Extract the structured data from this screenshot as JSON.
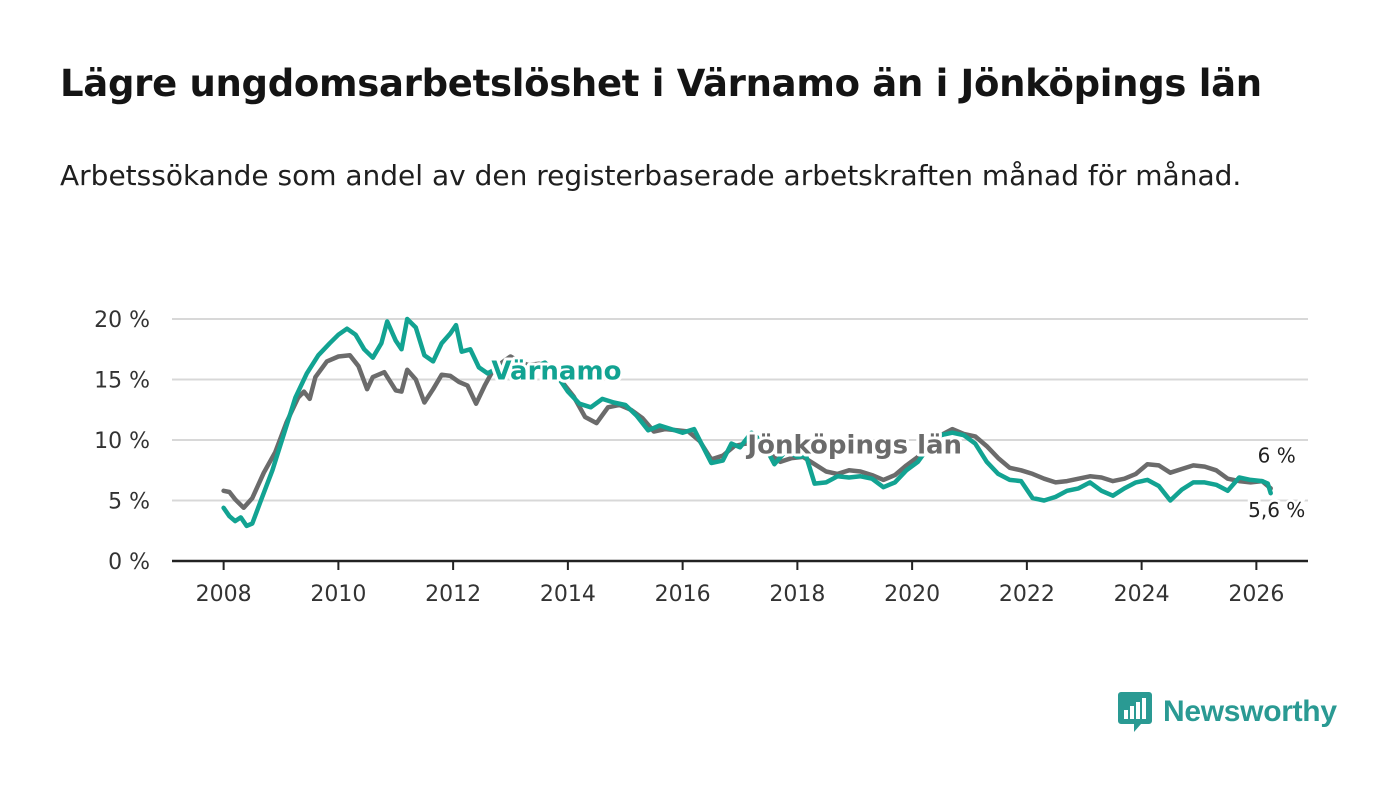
{
  "header": {
    "title": "Lägre ungdomsarbetslöshet i Värnamo än i Jönköpings län",
    "subtitle": "Arbetssökande som andel av den registerbaserade arbetskraften månad för månad."
  },
  "brand": {
    "name": "Newsworthy",
    "icon": "newsworthy-logo-icon",
    "color": "#2a9a93"
  },
  "chart_data": {
    "type": "line",
    "title": "Lägre ungdomsarbetslöshet i Värnamo än i Jönköpings län",
    "xlabel": "",
    "ylabel": "",
    "xlim": [
      2007.1,
      2026.9
    ],
    "ylim": [
      0,
      20
    ],
    "x_ticks": [
      2008,
      2010,
      2012,
      2014,
      2016,
      2018,
      2020,
      2022,
      2024,
      2026
    ],
    "x_tick_labels": [
      "2008",
      "2010",
      "2012",
      "2014",
      "2016",
      "2018",
      "2020",
      "2022",
      "2024",
      "2026"
    ],
    "y_ticks": [
      0,
      5,
      10,
      15,
      20
    ],
    "y_tick_labels": [
      "0 %",
      "5 %",
      "10 %",
      "15 %",
      "20 %"
    ],
    "grid": true,
    "series": [
      {
        "name": "Jönköpings län",
        "color": "#6b6b6b",
        "end_label": "6 %",
        "points": [
          [
            2008.0,
            5.8
          ],
          [
            2008.1,
            5.7
          ],
          [
            2008.2,
            5.1
          ],
          [
            2008.35,
            4.4
          ],
          [
            2008.5,
            5.2
          ],
          [
            2008.7,
            7.3
          ],
          [
            2008.9,
            9.0
          ],
          [
            2009.1,
            11.5
          ],
          [
            2009.3,
            13.5
          ],
          [
            2009.4,
            14.0
          ],
          [
            2009.5,
            13.4
          ],
          [
            2009.6,
            15.2
          ],
          [
            2009.8,
            16.5
          ],
          [
            2010.0,
            16.9
          ],
          [
            2010.2,
            17.0
          ],
          [
            2010.35,
            16.1
          ],
          [
            2010.5,
            14.2
          ],
          [
            2010.6,
            15.2
          ],
          [
            2010.8,
            15.6
          ],
          [
            2011.0,
            14.1
          ],
          [
            2011.1,
            14.0
          ],
          [
            2011.2,
            15.8
          ],
          [
            2011.35,
            15.0
          ],
          [
            2011.5,
            13.1
          ],
          [
            2011.65,
            14.2
          ],
          [
            2011.8,
            15.4
          ],
          [
            2011.95,
            15.3
          ],
          [
            2012.1,
            14.8
          ],
          [
            2012.25,
            14.5
          ],
          [
            2012.4,
            13.0
          ],
          [
            2012.55,
            14.5
          ],
          [
            2012.7,
            15.8
          ],
          [
            2012.85,
            16.4
          ],
          [
            2013.0,
            16.9
          ],
          [
            2013.15,
            16.5
          ],
          [
            2013.3,
            16.2
          ],
          [
            2013.5,
            16.3
          ],
          [
            2013.7,
            16.1
          ],
          [
            2013.9,
            14.8
          ],
          [
            2014.1,
            13.6
          ],
          [
            2014.3,
            11.9
          ],
          [
            2014.5,
            11.4
          ],
          [
            2014.7,
            12.7
          ],
          [
            2014.9,
            12.9
          ],
          [
            2015.1,
            12.5
          ],
          [
            2015.3,
            11.8
          ],
          [
            2015.5,
            10.7
          ],
          [
            2015.7,
            10.9
          ],
          [
            2015.9,
            10.8
          ],
          [
            2016.1,
            10.7
          ],
          [
            2016.3,
            9.9
          ],
          [
            2016.5,
            8.4
          ],
          [
            2016.7,
            8.7
          ],
          [
            2016.9,
            9.5
          ],
          [
            2017.1,
            9.7
          ],
          [
            2017.3,
            9.6
          ],
          [
            2017.5,
            9.0
          ],
          [
            2017.7,
            8.2
          ],
          [
            2017.9,
            8.5
          ],
          [
            2018.1,
            8.6
          ],
          [
            2018.3,
            8.0
          ],
          [
            2018.5,
            7.4
          ],
          [
            2018.7,
            7.2
          ],
          [
            2018.9,
            7.5
          ],
          [
            2019.1,
            7.4
          ],
          [
            2019.3,
            7.1
          ],
          [
            2019.5,
            6.7
          ],
          [
            2019.7,
            7.1
          ],
          [
            2019.9,
            7.9
          ],
          [
            2020.1,
            8.6
          ],
          [
            2020.3,
            9.8
          ],
          [
            2020.5,
            10.4
          ],
          [
            2020.7,
            10.9
          ],
          [
            2020.9,
            10.5
          ],
          [
            2021.1,
            10.3
          ],
          [
            2021.3,
            9.5
          ],
          [
            2021.5,
            8.5
          ],
          [
            2021.7,
            7.7
          ],
          [
            2021.9,
            7.5
          ],
          [
            2022.1,
            7.2
          ],
          [
            2022.3,
            6.8
          ],
          [
            2022.5,
            6.5
          ],
          [
            2022.7,
            6.6
          ],
          [
            2022.9,
            6.8
          ],
          [
            2023.1,
            7.0
          ],
          [
            2023.3,
            6.9
          ],
          [
            2023.5,
            6.6
          ],
          [
            2023.7,
            6.8
          ],
          [
            2023.9,
            7.2
          ],
          [
            2024.1,
            8.0
          ],
          [
            2024.3,
            7.9
          ],
          [
            2024.5,
            7.3
          ],
          [
            2024.7,
            7.6
          ],
          [
            2024.9,
            7.9
          ],
          [
            2025.1,
            7.8
          ],
          [
            2025.3,
            7.5
          ],
          [
            2025.5,
            6.8
          ],
          [
            2025.7,
            6.6
          ],
          [
            2025.9,
            6.5
          ],
          [
            2026.1,
            6.6
          ],
          [
            2026.25,
            6.0
          ]
        ]
      },
      {
        "name": "Värnamo",
        "color": "#12a392",
        "end_label": "5,6 %",
        "points": [
          [
            2008.0,
            4.4
          ],
          [
            2008.1,
            3.7
          ],
          [
            2008.2,
            3.3
          ],
          [
            2008.3,
            3.6
          ],
          [
            2008.4,
            2.9
          ],
          [
            2008.5,
            3.1
          ],
          [
            2008.65,
            5.0
          ],
          [
            2008.85,
            7.5
          ],
          [
            2009.05,
            10.5
          ],
          [
            2009.25,
            13.5
          ],
          [
            2009.45,
            15.5
          ],
          [
            2009.65,
            17.0
          ],
          [
            2009.85,
            18.0
          ],
          [
            2010.0,
            18.7
          ],
          [
            2010.15,
            19.2
          ],
          [
            2010.3,
            18.7
          ],
          [
            2010.45,
            17.5
          ],
          [
            2010.6,
            16.8
          ],
          [
            2010.75,
            18.0
          ],
          [
            2010.85,
            19.8
          ],
          [
            2011.0,
            18.2
          ],
          [
            2011.1,
            17.5
          ],
          [
            2011.2,
            20.0
          ],
          [
            2011.35,
            19.3
          ],
          [
            2011.5,
            17.0
          ],
          [
            2011.65,
            16.5
          ],
          [
            2011.8,
            18.0
          ],
          [
            2011.95,
            18.8
          ],
          [
            2012.05,
            19.5
          ],
          [
            2012.15,
            17.3
          ],
          [
            2012.3,
            17.5
          ],
          [
            2012.45,
            16.0
          ],
          [
            2012.6,
            15.5
          ],
          [
            2012.8,
            16.0
          ],
          [
            2013.0,
            16.4
          ],
          [
            2013.2,
            16.1
          ],
          [
            2013.4,
            16.0
          ],
          [
            2013.6,
            16.4
          ],
          [
            2013.8,
            15.4
          ],
          [
            2014.0,
            14.0
          ],
          [
            2014.2,
            13.0
          ],
          [
            2014.4,
            12.7
          ],
          [
            2014.6,
            13.4
          ],
          [
            2014.8,
            13.1
          ],
          [
            2015.0,
            12.9
          ],
          [
            2015.2,
            12.0
          ],
          [
            2015.4,
            10.8
          ],
          [
            2015.6,
            11.2
          ],
          [
            2015.8,
            10.9
          ],
          [
            2016.0,
            10.6
          ],
          [
            2016.2,
            10.9
          ],
          [
            2016.35,
            9.5
          ],
          [
            2016.5,
            8.1
          ],
          [
            2016.7,
            8.3
          ],
          [
            2016.85,
            9.7
          ],
          [
            2017.0,
            9.4
          ],
          [
            2017.2,
            10.6
          ],
          [
            2017.4,
            9.8
          ],
          [
            2017.6,
            8.0
          ],
          [
            2017.8,
            9.1
          ],
          [
            2018.0,
            8.6
          ],
          [
            2018.15,
            8.7
          ],
          [
            2018.3,
            6.4
          ],
          [
            2018.5,
            6.5
          ],
          [
            2018.7,
            7.0
          ],
          [
            2018.9,
            6.9
          ],
          [
            2019.1,
            7.0
          ],
          [
            2019.3,
            6.8
          ],
          [
            2019.5,
            6.1
          ],
          [
            2019.7,
            6.5
          ],
          [
            2019.9,
            7.5
          ],
          [
            2020.1,
            8.2
          ],
          [
            2020.3,
            9.5
          ],
          [
            2020.5,
            10.4
          ],
          [
            2020.7,
            10.6
          ],
          [
            2020.9,
            10.4
          ],
          [
            2021.1,
            9.7
          ],
          [
            2021.3,
            8.2
          ],
          [
            2021.5,
            7.2
          ],
          [
            2021.7,
            6.7
          ],
          [
            2021.9,
            6.6
          ],
          [
            2022.1,
            5.2
          ],
          [
            2022.3,
            5.0
          ],
          [
            2022.5,
            5.3
          ],
          [
            2022.7,
            5.8
          ],
          [
            2022.9,
            6.0
          ],
          [
            2023.1,
            6.5
          ],
          [
            2023.3,
            5.8
          ],
          [
            2023.5,
            5.4
          ],
          [
            2023.7,
            6.0
          ],
          [
            2023.9,
            6.5
          ],
          [
            2024.1,
            6.7
          ],
          [
            2024.3,
            6.2
          ],
          [
            2024.5,
            5.0
          ],
          [
            2024.7,
            5.9
          ],
          [
            2024.9,
            6.5
          ],
          [
            2025.1,
            6.5
          ],
          [
            2025.3,
            6.3
          ],
          [
            2025.5,
            5.8
          ],
          [
            2025.7,
            6.9
          ],
          [
            2025.9,
            6.7
          ],
          [
            2026.1,
            6.6
          ],
          [
            2026.2,
            6.4
          ],
          [
            2026.25,
            5.6
          ]
        ]
      }
    ],
    "annotations": [
      {
        "text": "Värnamo",
        "series": "Värnamo",
        "x": 2013.8,
        "y": 15.0
      },
      {
        "text": "Jönköpings län",
        "series": "Jönköpings län",
        "x": 2019.0,
        "y": 8.9
      }
    ]
  }
}
